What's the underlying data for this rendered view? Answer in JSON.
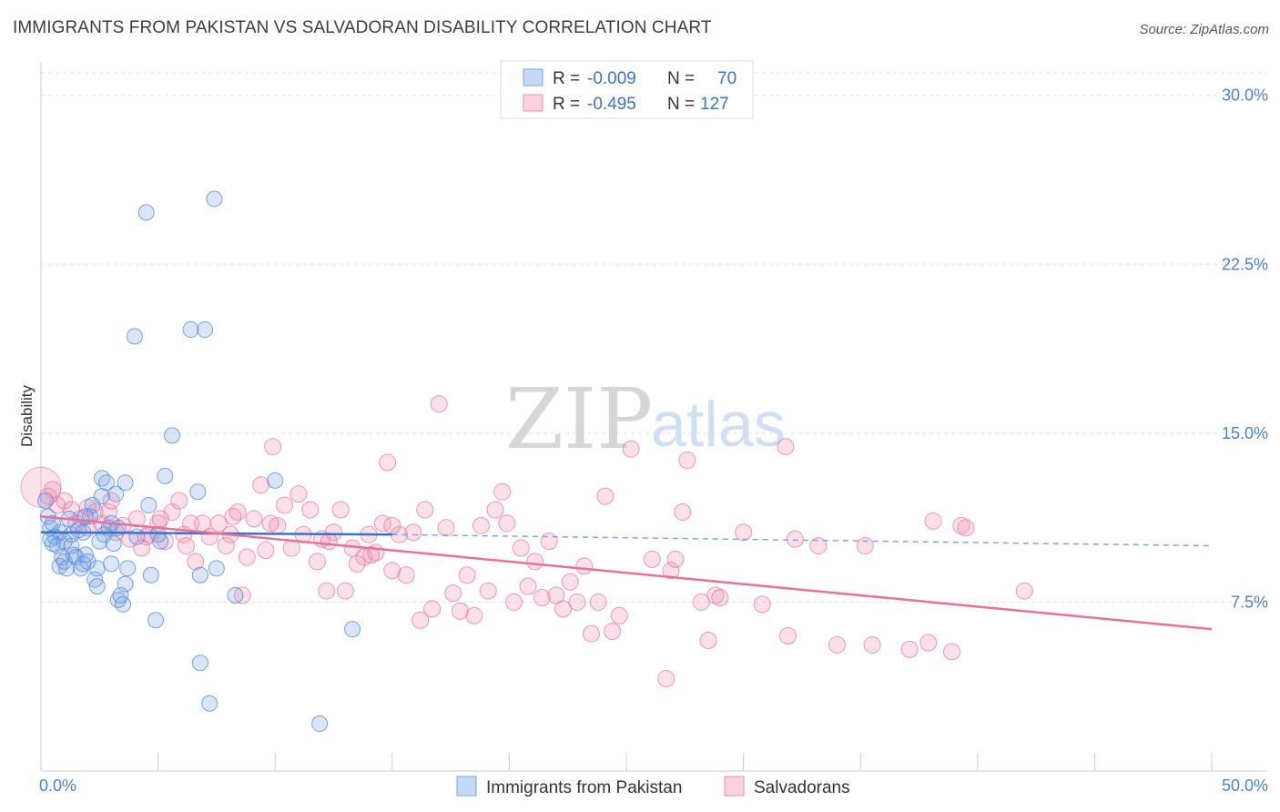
{
  "title": "IMMIGRANTS FROM PAKISTAN VS SALVADORAN DISABILITY CORRELATION CHART",
  "source": "Source: ZipAtlas.com",
  "watermark": {
    "zip": "ZIP",
    "atlas": "atlas"
  },
  "legend": {
    "rows": [
      {
        "r_label": "R =",
        "r_value": "-0.009",
        "n_label": "N =",
        "n_value": "70",
        "color": "#7aa6e6"
      },
      {
        "r_label": "R =",
        "r_value": "-0.495",
        "n_label": "N =",
        "n_value": "127",
        "color": "#f08cb0"
      }
    ]
  },
  "chart_data": {
    "type": "scatter",
    "title": "IMMIGRANTS FROM PAKISTAN VS SALVADORAN DISABILITY CORRELATION CHART",
    "xlabel": "",
    "ylabel": "Disability",
    "xlim": [
      0,
      50
    ],
    "ylim": [
      0,
      31
    ],
    "x_tick_labels": [
      "0.0%",
      "50.0%"
    ],
    "y_ticks": [
      7.5,
      15.0,
      22.5,
      30.0
    ],
    "y_tick_labels": [
      "7.5%",
      "15.0%",
      "22.5%",
      "30.0%"
    ],
    "grid": true,
    "legend_position": "top-center",
    "series": [
      {
        "name": "Immigrants from Pakistan",
        "color": "#7aa6e6",
        "trend": {
          "x": [
            0,
            15
          ],
          "y": [
            10.6,
            10.5
          ],
          "dashed_to": [
            50,
            10.0
          ]
        },
        "points": [
          [
            0.2,
            12.0
          ],
          [
            0.3,
            11.3
          ],
          [
            0.4,
            10.8
          ],
          [
            0.4,
            10.3
          ],
          [
            0.5,
            11.0
          ],
          [
            0.6,
            10.4
          ],
          [
            0.7,
            10.0
          ],
          [
            0.8,
            9.1
          ],
          [
            0.8,
            10.6
          ],
          [
            0.9,
            9.5
          ],
          [
            1.0,
            9.3
          ],
          [
            1.0,
            10.2
          ],
          [
            1.1,
            9.0
          ],
          [
            1.2,
            11.2
          ],
          [
            1.3,
            10.5
          ],
          [
            1.4,
            9.6
          ],
          [
            1.5,
            9.5
          ],
          [
            1.6,
            10.7
          ],
          [
            1.7,
            9.0
          ],
          [
            1.8,
            9.2
          ],
          [
            1.8,
            10.6
          ],
          [
            1.9,
            9.6
          ],
          [
            2.0,
            9.3
          ],
          [
            2.1,
            11.3
          ],
          [
            2.2,
            11.8
          ],
          [
            2.3,
            8.5
          ],
          [
            2.4,
            8.2
          ],
          [
            2.4,
            9.0
          ],
          [
            2.5,
            10.2
          ],
          [
            2.6,
            13.0
          ],
          [
            2.7,
            10.5
          ],
          [
            2.8,
            12.8
          ],
          [
            2.9,
            10.8
          ],
          [
            3.0,
            11.0
          ],
          [
            3.0,
            9.2
          ],
          [
            3.1,
            10.1
          ],
          [
            3.2,
            12.3
          ],
          [
            3.3,
            7.6
          ],
          [
            3.4,
            7.8
          ],
          [
            3.5,
            7.4
          ],
          [
            3.6,
            12.8
          ],
          [
            3.6,
            8.3
          ],
          [
            3.7,
            9.0
          ],
          [
            4.0,
            19.3
          ],
          [
            4.1,
            10.4
          ],
          [
            4.5,
            24.8
          ],
          [
            4.6,
            11.8
          ],
          [
            4.7,
            8.7
          ],
          [
            4.9,
            6.7
          ],
          [
            5.0,
            10.5
          ],
          [
            5.1,
            10.2
          ],
          [
            5.3,
            13.1
          ],
          [
            5.6,
            14.9
          ],
          [
            6.4,
            19.6
          ],
          [
            6.7,
            12.4
          ],
          [
            6.8,
            4.8
          ],
          [
            7.0,
            19.6
          ],
          [
            7.2,
            3.0
          ],
          [
            7.4,
            25.4
          ],
          [
            7.5,
            9.0
          ],
          [
            8.3,
            7.8
          ],
          [
            10.0,
            12.9
          ],
          [
            11.9,
            2.1
          ],
          [
            13.3,
            6.3
          ],
          [
            6.8,
            8.7
          ],
          [
            2.6,
            12.2
          ],
          [
            1.3,
            10.0
          ],
          [
            0.5,
            10.1
          ],
          [
            3.3,
            10.8
          ],
          [
            1.9,
            11.3
          ]
        ]
      },
      {
        "name": "Salvadorans",
        "color": "#f08cb0",
        "trend": {
          "x": [
            0,
            50
          ],
          "y": [
            11.3,
            6.3
          ]
        },
        "points": [
          [
            0.3,
            12.2
          ],
          [
            0.5,
            12.5
          ],
          [
            0.7,
            11.8
          ],
          [
            1.0,
            12.0
          ],
          [
            1.3,
            11.6
          ],
          [
            1.7,
            11.2
          ],
          [
            2.0,
            10.8
          ],
          [
            2.3,
            11.5
          ],
          [
            2.6,
            11.0
          ],
          [
            2.9,
            11.5
          ],
          [
            3.2,
            10.6
          ],
          [
            3.5,
            10.9
          ],
          [
            3.8,
            10.3
          ],
          [
            4.1,
            11.2
          ],
          [
            4.3,
            9.9
          ],
          [
            4.6,
            10.5
          ],
          [
            5.0,
            11.0
          ],
          [
            5.3,
            10.2
          ],
          [
            5.6,
            11.5
          ],
          [
            5.9,
            12.0
          ],
          [
            6.1,
            10.5
          ],
          [
            6.4,
            11.0
          ],
          [
            6.6,
            9.3
          ],
          [
            6.9,
            11.0
          ],
          [
            7.2,
            10.4
          ],
          [
            7.6,
            11.0
          ],
          [
            7.9,
            10.0
          ],
          [
            8.1,
            10.5
          ],
          [
            8.4,
            11.5
          ],
          [
            8.6,
            7.8
          ],
          [
            8.8,
            9.5
          ],
          [
            9.1,
            11.2
          ],
          [
            9.4,
            12.7
          ],
          [
            9.6,
            9.8
          ],
          [
            9.9,
            14.4
          ],
          [
            10.1,
            10.9
          ],
          [
            10.4,
            11.8
          ],
          [
            10.7,
            9.9
          ],
          [
            11.0,
            12.3
          ],
          [
            11.2,
            10.5
          ],
          [
            11.5,
            11.6
          ],
          [
            11.8,
            9.3
          ],
          [
            12.0,
            10.3
          ],
          [
            12.2,
            8.0
          ],
          [
            12.5,
            10.6
          ],
          [
            12.8,
            11.6
          ],
          [
            13.0,
            8.0
          ],
          [
            13.3,
            9.9
          ],
          [
            13.5,
            9.2
          ],
          [
            13.8,
            9.5
          ],
          [
            14.0,
            10.5
          ],
          [
            14.3,
            9.7
          ],
          [
            14.6,
            11.0
          ],
          [
            14.8,
            13.7
          ],
          [
            15.0,
            8.9
          ],
          [
            15.3,
            10.5
          ],
          [
            15.6,
            8.7
          ],
          [
            15.9,
            10.6
          ],
          [
            16.2,
            6.7
          ],
          [
            16.4,
            11.6
          ],
          [
            16.7,
            7.2
          ],
          [
            17.0,
            16.3
          ],
          [
            17.3,
            10.8
          ],
          [
            17.6,
            7.9
          ],
          [
            17.9,
            7.1
          ],
          [
            18.2,
            8.7
          ],
          [
            18.5,
            6.9
          ],
          [
            18.8,
            10.9
          ],
          [
            19.1,
            8.0
          ],
          [
            19.4,
            11.6
          ],
          [
            19.7,
            12.4
          ],
          [
            19.9,
            11.0
          ],
          [
            20.2,
            7.5
          ],
          [
            20.5,
            9.9
          ],
          [
            20.8,
            8.2
          ],
          [
            21.1,
            9.3
          ],
          [
            21.4,
            7.7
          ],
          [
            21.7,
            10.2
          ],
          [
            22.0,
            7.8
          ],
          [
            22.3,
            7.2
          ],
          [
            22.6,
            8.4
          ],
          [
            22.9,
            7.5
          ],
          [
            23.2,
            9.1
          ],
          [
            23.5,
            6.1
          ],
          [
            23.8,
            7.5
          ],
          [
            24.1,
            12.2
          ],
          [
            24.4,
            6.2
          ],
          [
            24.7,
            6.9
          ],
          [
            25.2,
            14.3
          ],
          [
            26.1,
            9.4
          ],
          [
            26.7,
            4.1
          ],
          [
            26.9,
            8.9
          ],
          [
            27.1,
            9.4
          ],
          [
            27.4,
            11.5
          ],
          [
            27.6,
            13.8
          ],
          [
            28.2,
            7.5
          ],
          [
            28.5,
            5.8
          ],
          [
            28.8,
            7.8
          ],
          [
            29.0,
            7.7
          ],
          [
            30.0,
            10.6
          ],
          [
            30.8,
            7.4
          ],
          [
            31.8,
            14.4
          ],
          [
            31.9,
            6.0
          ],
          [
            32.2,
            10.3
          ],
          [
            33.2,
            10.0
          ],
          [
            34.0,
            5.6
          ],
          [
            35.2,
            10.0
          ],
          [
            35.5,
            5.6
          ],
          [
            37.1,
            5.4
          ],
          [
            37.9,
            5.7
          ],
          [
            38.1,
            11.1
          ],
          [
            38.9,
            5.3
          ],
          [
            39.3,
            10.9
          ],
          [
            39.5,
            10.8
          ],
          [
            42.0,
            8.0
          ],
          [
            15.0,
            10.9
          ],
          [
            12.3,
            10.2
          ],
          [
            14.1,
            9.6
          ],
          [
            8.2,
            11.3
          ],
          [
            9.8,
            11.0
          ],
          [
            6.2,
            10.0
          ],
          [
            5.1,
            11.2
          ],
          [
            3.0,
            12.0
          ],
          [
            2.0,
            11.7
          ],
          [
            1.5,
            11.0
          ],
          [
            4.5,
            10.4
          ]
        ]
      }
    ]
  },
  "bottom_legend": [
    {
      "label": "Immigrants from Pakistan",
      "color": "#7aa6e6"
    },
    {
      "label": "Salvadorans",
      "color": "#f08cb0"
    }
  ]
}
